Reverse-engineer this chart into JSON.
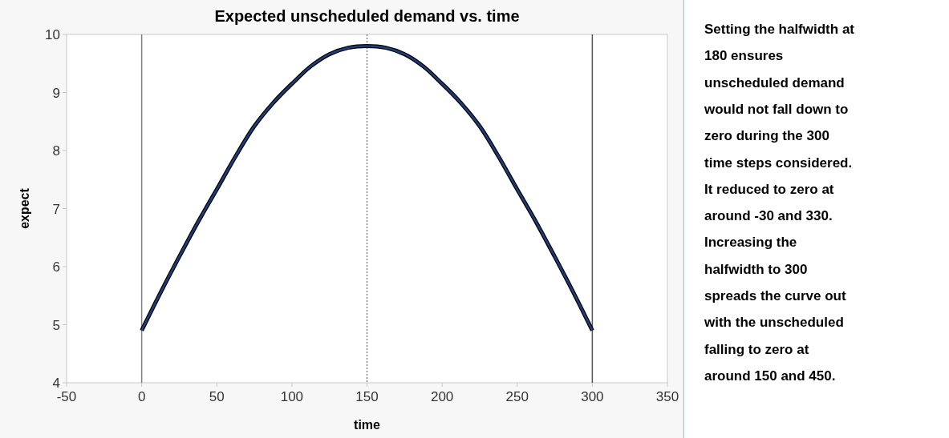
{
  "chart_data": {
    "type": "line",
    "title": "Expected unscheduled demand vs. time",
    "xlabel": "time",
    "ylabel": "expect",
    "x": [
      0,
      12.5,
      25,
      37.5,
      50,
      62.5,
      75,
      87.5,
      100,
      112.5,
      125,
      137.5,
      150,
      162.5,
      175,
      187.5,
      200,
      212.5,
      225,
      237.5,
      250,
      262.5,
      275,
      287.5,
      300
    ],
    "series": [
      {
        "color": "#1f3d7a",
        "values": [
          4.9,
          5.55,
          6.17,
          6.77,
          7.33,
          7.9,
          8.42,
          8.82,
          9.15,
          9.45,
          9.66,
          9.77,
          9.8,
          9.77,
          9.66,
          9.45,
          9.15,
          8.82,
          8.42,
          7.9,
          7.33,
          6.77,
          6.17,
          5.55,
          4.9
        ]
      }
    ],
    "xlim": [
      -50,
      350
    ],
    "xticks": [
      -50,
      0,
      50,
      100,
      150,
      200,
      250,
      300,
      350
    ],
    "ylim": [
      4,
      10
    ],
    "yticks": [
      4,
      5,
      6,
      7,
      8,
      9,
      10
    ],
    "ref_lines": [
      {
        "axis": "x",
        "value": 0,
        "color": "#808080",
        "line_style": "solid"
      },
      {
        "axis": "x",
        "value": 150,
        "color": "#555555",
        "line_style": "dotted"
      },
      {
        "axis": "x",
        "value": 300,
        "color": "#555555",
        "line_style": "solid"
      }
    ],
    "annotations": [
      "Setting the halfwidth at\n180 ensures\nunscheduled demand\nwould not fall down to\nzero during the 300\ntime steps considered.\nIt reduced to zero at\naround -30 and 330.\nIncreasing the\nhalfwidth to 300\nspreads the curve out\nwith the unscheduled\nfalling to zero at\naround 150 and 450."
    ],
    "grid": false,
    "marker": "none",
    "line_style": "solid"
  }
}
